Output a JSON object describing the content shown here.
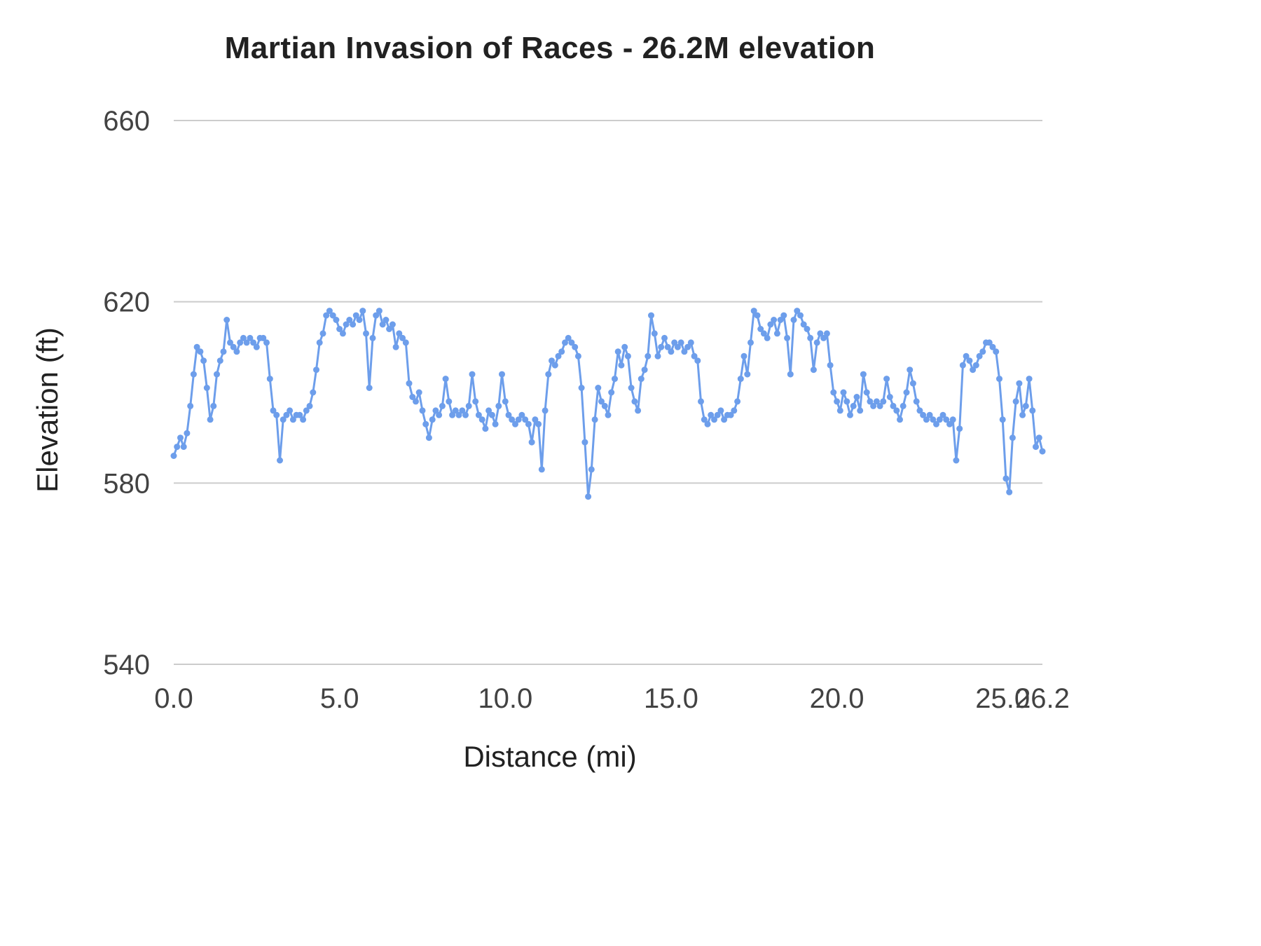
{
  "chart_data": {
    "type": "line",
    "title": "Martian Invasion of Races - 26.2M elevation",
    "xlabel": "Distance (mi)",
    "ylabel": "Elevation (ft)",
    "xlim": [
      0,
      26.2
    ],
    "ylim": [
      540,
      660
    ],
    "yticks": [
      540,
      580,
      620,
      660
    ],
    "xticks": [
      0,
      5,
      10,
      15,
      20,
      25,
      26.2
    ],
    "xtick_labels": [
      "0.0",
      "5.0",
      "10.0",
      "15.0",
      "20.0",
      "25.0",
      "26.2"
    ],
    "grid": true,
    "legend": "none",
    "line_color": "#6d9eeb",
    "grid_color": "#cccccc",
    "point_radius": 4.5,
    "points": [
      [
        0.0,
        586
      ],
      [
        0.1,
        588
      ],
      [
        0.2,
        590
      ],
      [
        0.3,
        588
      ],
      [
        0.4,
        591
      ],
      [
        0.5,
        597
      ],
      [
        0.6,
        604
      ],
      [
        0.7,
        610
      ],
      [
        0.8,
        609
      ],
      [
        0.9,
        607
      ],
      [
        1.0,
        601
      ],
      [
        1.1,
        594
      ],
      [
        1.2,
        597
      ],
      [
        1.3,
        604
      ],
      [
        1.4,
        607
      ],
      [
        1.5,
        609
      ],
      [
        1.6,
        616
      ],
      [
        1.7,
        611
      ],
      [
        1.8,
        610
      ],
      [
        1.9,
        609
      ],
      [
        2.0,
        611
      ],
      [
        2.1,
        612
      ],
      [
        2.2,
        611
      ],
      [
        2.3,
        612
      ],
      [
        2.4,
        611
      ],
      [
        2.5,
        610
      ],
      [
        2.6,
        612
      ],
      [
        2.7,
        612
      ],
      [
        2.8,
        611
      ],
      [
        2.9,
        603
      ],
      [
        3.0,
        596
      ],
      [
        3.1,
        595
      ],
      [
        3.2,
        585
      ],
      [
        3.3,
        594
      ],
      [
        3.4,
        595
      ],
      [
        3.5,
        596
      ],
      [
        3.6,
        594
      ],
      [
        3.7,
        595
      ],
      [
        3.8,
        595
      ],
      [
        3.9,
        594
      ],
      [
        4.0,
        596
      ],
      [
        4.1,
        597
      ],
      [
        4.2,
        600
      ],
      [
        4.3,
        605
      ],
      [
        4.4,
        611
      ],
      [
        4.5,
        613
      ],
      [
        4.6,
        617
      ],
      [
        4.7,
        618
      ],
      [
        4.8,
        617
      ],
      [
        4.9,
        616
      ],
      [
        5.0,
        614
      ],
      [
        5.1,
        613
      ],
      [
        5.2,
        615
      ],
      [
        5.3,
        616
      ],
      [
        5.4,
        615
      ],
      [
        5.5,
        617
      ],
      [
        5.6,
        616
      ],
      [
        5.7,
        618
      ],
      [
        5.8,
        613
      ],
      [
        5.9,
        601
      ],
      [
        6.0,
        612
      ],
      [
        6.1,
        617
      ],
      [
        6.2,
        618
      ],
      [
        6.3,
        615
      ],
      [
        6.4,
        616
      ],
      [
        6.5,
        614
      ],
      [
        6.6,
        615
      ],
      [
        6.7,
        610
      ],
      [
        6.8,
        613
      ],
      [
        6.9,
        612
      ],
      [
        7.0,
        611
      ],
      [
        7.1,
        602
      ],
      [
        7.2,
        599
      ],
      [
        7.3,
        598
      ],
      [
        7.4,
        600
      ],
      [
        7.5,
        596
      ],
      [
        7.6,
        593
      ],
      [
        7.7,
        590
      ],
      [
        7.8,
        594
      ],
      [
        7.9,
        596
      ],
      [
        8.0,
        595
      ],
      [
        8.1,
        597
      ],
      [
        8.2,
        603
      ],
      [
        8.3,
        598
      ],
      [
        8.4,
        595
      ],
      [
        8.5,
        596
      ],
      [
        8.6,
        595
      ],
      [
        8.7,
        596
      ],
      [
        8.8,
        595
      ],
      [
        8.9,
        597
      ],
      [
        9.0,
        604
      ],
      [
        9.1,
        598
      ],
      [
        9.2,
        595
      ],
      [
        9.3,
        594
      ],
      [
        9.4,
        592
      ],
      [
        9.5,
        596
      ],
      [
        9.6,
        595
      ],
      [
        9.7,
        593
      ],
      [
        9.8,
        597
      ],
      [
        9.9,
        604
      ],
      [
        10.0,
        598
      ],
      [
        10.1,
        595
      ],
      [
        10.2,
        594
      ],
      [
        10.3,
        593
      ],
      [
        10.4,
        594
      ],
      [
        10.5,
        595
      ],
      [
        10.6,
        594
      ],
      [
        10.7,
        593
      ],
      [
        10.8,
        589
      ],
      [
        10.9,
        594
      ],
      [
        11.0,
        593
      ],
      [
        11.1,
        583
      ],
      [
        11.2,
        596
      ],
      [
        11.3,
        604
      ],
      [
        11.4,
        607
      ],
      [
        11.5,
        606
      ],
      [
        11.6,
        608
      ],
      [
        11.7,
        609
      ],
      [
        11.8,
        611
      ],
      [
        11.9,
        612
      ],
      [
        12.0,
        611
      ],
      [
        12.1,
        610
      ],
      [
        12.2,
        608
      ],
      [
        12.3,
        601
      ],
      [
        12.4,
        589
      ],
      [
        12.5,
        577
      ],
      [
        12.6,
        583
      ],
      [
        12.7,
        594
      ],
      [
        12.8,
        601
      ],
      [
        12.9,
        598
      ],
      [
        13.0,
        597
      ],
      [
        13.1,
        595
      ],
      [
        13.2,
        600
      ],
      [
        13.3,
        603
      ],
      [
        13.4,
        609
      ],
      [
        13.5,
        606
      ],
      [
        13.6,
        610
      ],
      [
        13.7,
        608
      ],
      [
        13.8,
        601
      ],
      [
        13.9,
        598
      ],
      [
        14.0,
        596
      ],
      [
        14.1,
        603
      ],
      [
        14.2,
        605
      ],
      [
        14.3,
        608
      ],
      [
        14.4,
        617
      ],
      [
        14.5,
        613
      ],
      [
        14.6,
        608
      ],
      [
        14.7,
        610
      ],
      [
        14.8,
        612
      ],
      [
        14.9,
        610
      ],
      [
        15.0,
        609
      ],
      [
        15.1,
        611
      ],
      [
        15.2,
        610
      ],
      [
        15.3,
        611
      ],
      [
        15.4,
        609
      ],
      [
        15.5,
        610
      ],
      [
        15.6,
        611
      ],
      [
        15.7,
        608
      ],
      [
        15.8,
        607
      ],
      [
        15.9,
        598
      ],
      [
        16.0,
        594
      ],
      [
        16.1,
        593
      ],
      [
        16.2,
        595
      ],
      [
        16.3,
        594
      ],
      [
        16.4,
        595
      ],
      [
        16.5,
        596
      ],
      [
        16.6,
        594
      ],
      [
        16.7,
        595
      ],
      [
        16.8,
        595
      ],
      [
        16.9,
        596
      ],
      [
        17.0,
        598
      ],
      [
        17.1,
        603
      ],
      [
        17.2,
        608
      ],
      [
        17.3,
        604
      ],
      [
        17.4,
        611
      ],
      [
        17.5,
        618
      ],
      [
        17.6,
        617
      ],
      [
        17.7,
        614
      ],
      [
        17.8,
        613
      ],
      [
        17.9,
        612
      ],
      [
        18.0,
        615
      ],
      [
        18.1,
        616
      ],
      [
        18.2,
        613
      ],
      [
        18.3,
        616
      ],
      [
        18.4,
        617
      ],
      [
        18.5,
        612
      ],
      [
        18.6,
        604
      ],
      [
        18.7,
        616
      ],
      [
        18.8,
        618
      ],
      [
        18.9,
        617
      ],
      [
        19.0,
        615
      ],
      [
        19.1,
        614
      ],
      [
        19.2,
        612
      ],
      [
        19.3,
        605
      ],
      [
        19.4,
        611
      ],
      [
        19.5,
        613
      ],
      [
        19.6,
        612
      ],
      [
        19.7,
        613
      ],
      [
        19.8,
        606
      ],
      [
        19.9,
        600
      ],
      [
        20.0,
        598
      ],
      [
        20.1,
        596
      ],
      [
        20.2,
        600
      ],
      [
        20.3,
        598
      ],
      [
        20.4,
        595
      ],
      [
        20.5,
        597
      ],
      [
        20.6,
        599
      ],
      [
        20.7,
        596
      ],
      [
        20.8,
        604
      ],
      [
        20.9,
        600
      ],
      [
        21.0,
        598
      ],
      [
        21.1,
        597
      ],
      [
        21.2,
        598
      ],
      [
        21.3,
        597
      ],
      [
        21.4,
        598
      ],
      [
        21.5,
        603
      ],
      [
        21.6,
        599
      ],
      [
        21.7,
        597
      ],
      [
        21.8,
        596
      ],
      [
        21.9,
        594
      ],
      [
        22.0,
        597
      ],
      [
        22.1,
        600
      ],
      [
        22.2,
        605
      ],
      [
        22.3,
        602
      ],
      [
        22.4,
        598
      ],
      [
        22.5,
        596
      ],
      [
        22.6,
        595
      ],
      [
        22.7,
        594
      ],
      [
        22.8,
        595
      ],
      [
        22.9,
        594
      ],
      [
        23.0,
        593
      ],
      [
        23.1,
        594
      ],
      [
        23.2,
        595
      ],
      [
        23.3,
        594
      ],
      [
        23.4,
        593
      ],
      [
        23.5,
        594
      ],
      [
        23.6,
        585
      ],
      [
        23.7,
        592
      ],
      [
        23.8,
        606
      ],
      [
        23.9,
        608
      ],
      [
        24.0,
        607
      ],
      [
        24.1,
        605
      ],
      [
        24.2,
        606
      ],
      [
        24.3,
        608
      ],
      [
        24.4,
        609
      ],
      [
        24.5,
        611
      ],
      [
        24.6,
        611
      ],
      [
        24.7,
        610
      ],
      [
        24.8,
        609
      ],
      [
        24.9,
        603
      ],
      [
        25.0,
        594
      ],
      [
        25.1,
        581
      ],
      [
        25.2,
        578
      ],
      [
        25.3,
        590
      ],
      [
        25.4,
        598
      ],
      [
        25.5,
        602
      ],
      [
        25.6,
        595
      ],
      [
        25.7,
        597
      ],
      [
        25.8,
        603
      ],
      [
        25.9,
        596
      ],
      [
        26.0,
        588
      ],
      [
        26.1,
        590
      ],
      [
        26.2,
        587
      ]
    ]
  }
}
